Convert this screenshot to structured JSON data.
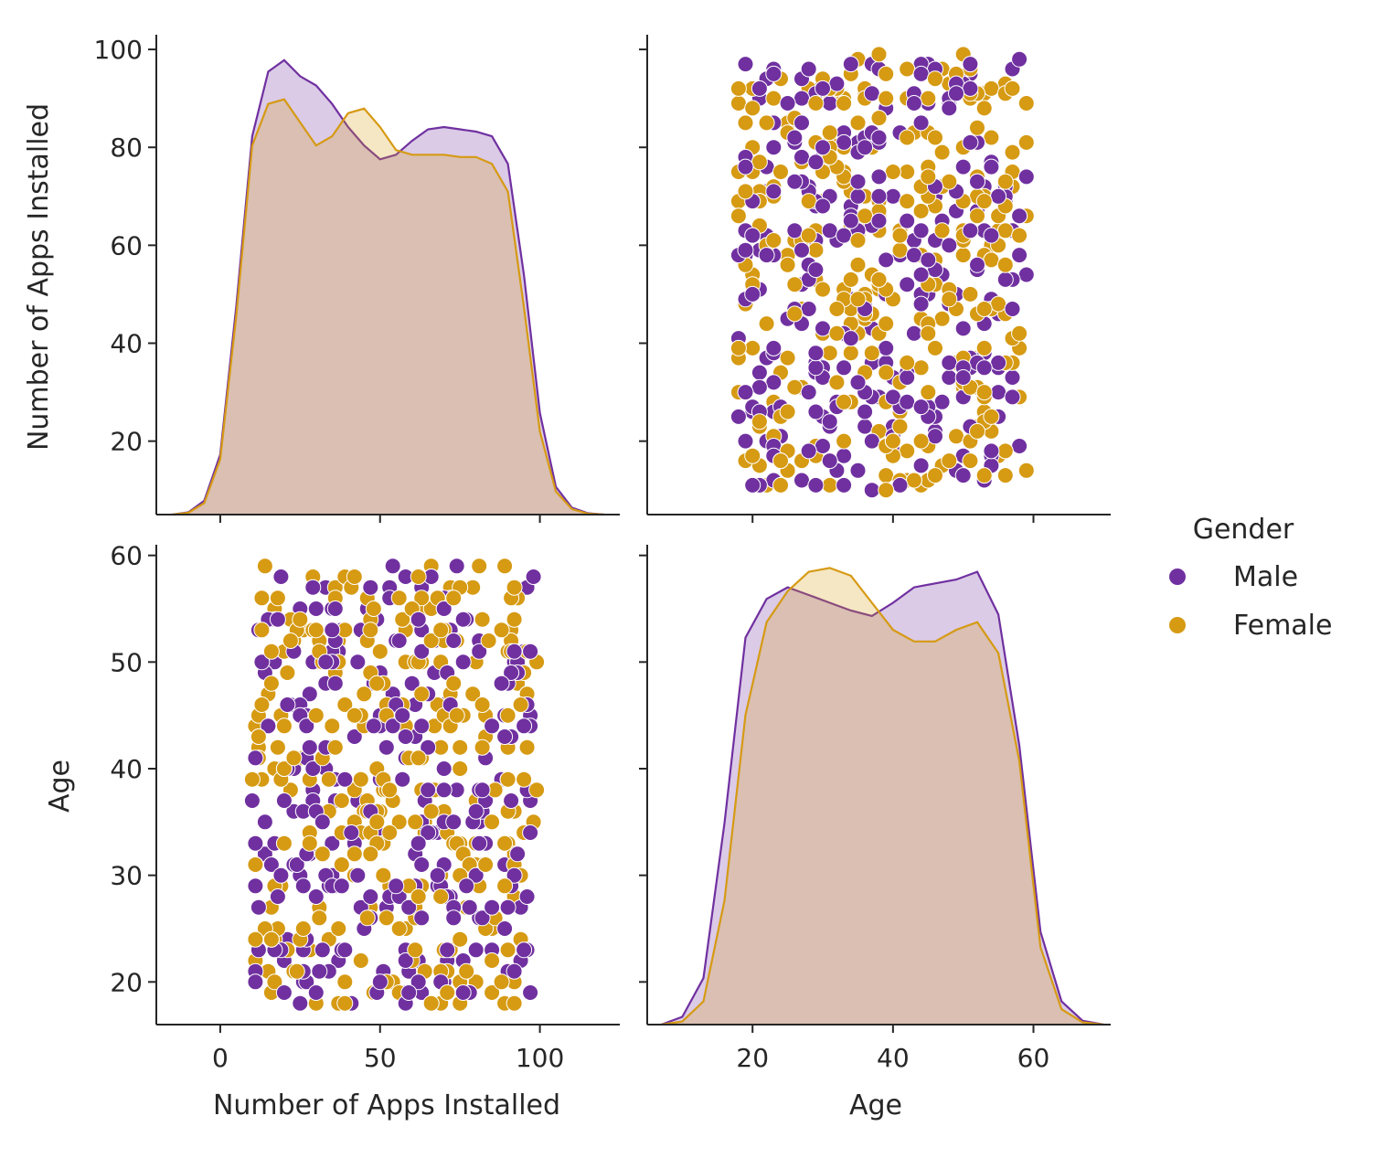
{
  "chart_data": {
    "type": "scatter",
    "kind": "pairplot",
    "variables": [
      "Number of Apps Installed",
      "Age"
    ],
    "hue": "Gender",
    "legend": {
      "title": "Gender",
      "placement": "right",
      "entries": [
        {
          "label": "Male",
          "color": "#7030a0"
        },
        {
          "label": "Female",
          "color": "#d69a13"
        }
      ]
    },
    "axes": {
      "apps": {
        "label": "Number of Apps Installed",
        "diag_lim": [
          -20,
          125
        ],
        "scatter_lim": [
          5,
          103
        ],
        "ticks_x": [
          0,
          50,
          100
        ],
        "ticks_y": [
          20,
          40,
          60,
          80,
          100
        ]
      },
      "age": {
        "label": "Age",
        "diag_lim": [
          5,
          71
        ],
        "scatter_lim": [
          16,
          61
        ],
        "ticks_x": [
          20,
          40,
          60
        ],
        "ticks_y": [
          20,
          30,
          40,
          50,
          60
        ]
      }
    },
    "kde": {
      "apps": {
        "x": [
          -15,
          -10,
          -5,
          0,
          5,
          10,
          15,
          20,
          25,
          30,
          35,
          40,
          45,
          50,
          55,
          60,
          65,
          70,
          75,
          80,
          85,
          90,
          95,
          100,
          105,
          110,
          115,
          120
        ],
        "Male": [
          0,
          0.5,
          3,
          13,
          45,
          82,
          96,
          98.5,
          95,
          93,
          89,
          84,
          80,
          77,
          78,
          81,
          83.5,
          84,
          83.5,
          83,
          82,
          76,
          52,
          22,
          6,
          1.5,
          0.3,
          0
        ],
        "Female": [
          0,
          0.4,
          2.5,
          12,
          43,
          80,
          89,
          90,
          85,
          80,
          82,
          87,
          88,
          84,
          79,
          78,
          78,
          78,
          77.5,
          77.5,
          76,
          70,
          45,
          18,
          5,
          1.2,
          0.2,
          0
        ]
      },
      "age": {
        "x": [
          7,
          10,
          13,
          16,
          19,
          22,
          25,
          28,
          31,
          34,
          37,
          40,
          43,
          46,
          49,
          52,
          55,
          58,
          61,
          64,
          67,
          70
        ],
        "Male": [
          0,
          1,
          6,
          26,
          50,
          55,
          56.5,
          55.5,
          54.5,
          53.5,
          52.8,
          54.5,
          56.5,
          57,
          57.5,
          58.5,
          53,
          36,
          12,
          3,
          0.5,
          0
        ],
        "Female": [
          0,
          0.4,
          3,
          16,
          40,
          52,
          56,
          58.5,
          59,
          58,
          54.5,
          51,
          49.5,
          49.5,
          51,
          52,
          48,
          34,
          10,
          2,
          0.3,
          0
        ]
      }
    },
    "points": {
      "Male": [],
      "Female": []
    }
  }
}
